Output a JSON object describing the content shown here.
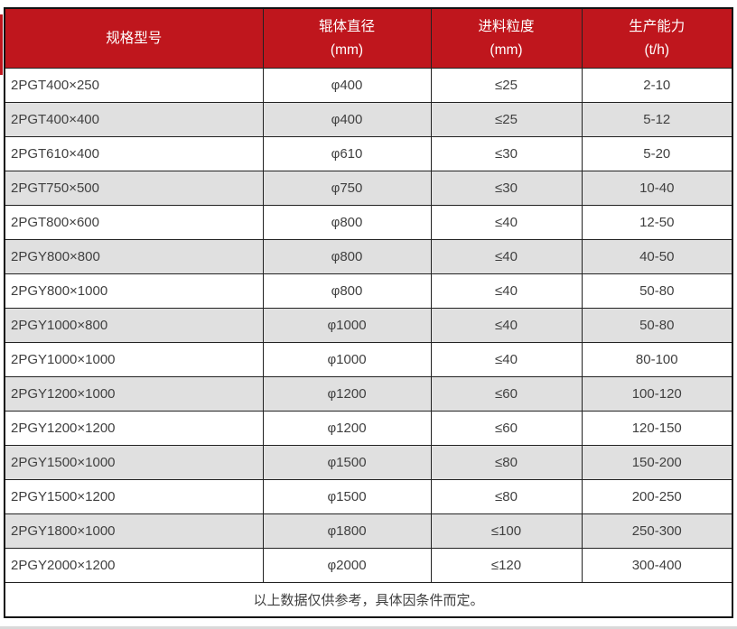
{
  "colors": {
    "header_bg": "#bf161d",
    "header_text": "#ffffff",
    "row_bg": "#ffffff",
    "row_alt_bg": "#e0e0e0",
    "body_text": "#404040",
    "border_outer": "#111111",
    "border_inner": "#222222",
    "edge_strip": "#d9d9d9"
  },
  "table": {
    "columns": [
      {
        "title": "规格型号",
        "unit": ""
      },
      {
        "title": "辊体直径",
        "unit": "(mm)"
      },
      {
        "title": "进料粒度",
        "unit": "(mm)"
      },
      {
        "title": "生产能力",
        "unit": "(t/h)"
      }
    ],
    "rows": [
      [
        "2PGT400×250",
        "φ400",
        "≤25",
        "2-10"
      ],
      [
        "2PGT400×400",
        "φ400",
        "≤25",
        "5-12"
      ],
      [
        "2PGT610×400",
        "φ610",
        "≤30",
        "5-20"
      ],
      [
        "2PGT750×500",
        "φ750",
        "≤30",
        "10-40"
      ],
      [
        "2PGT800×600",
        "φ800",
        "≤40",
        "12-50"
      ],
      [
        "2PGY800×800",
        "φ800",
        "≤40",
        "40-50"
      ],
      [
        "2PGY800×1000",
        "φ800",
        "≤40",
        "50-80"
      ],
      [
        "2PGY1000×800",
        "φ1000",
        "≤40",
        "50-80"
      ],
      [
        "2PGY1000×1000",
        "φ1000",
        "≤40",
        "80-100"
      ],
      [
        "2PGY1200×1000",
        "φ1200",
        "≤60",
        "100-120"
      ],
      [
        "2PGY1200×1200",
        "φ1200",
        "≤60",
        "120-150"
      ],
      [
        "2PGY1500×1000",
        "φ1500",
        "≤80",
        "150-200"
      ],
      [
        "2PGY1500×1200",
        "φ1500",
        "≤80",
        "200-250"
      ],
      [
        "2PGY1800×1000",
        "φ1800",
        "≤100",
        "250-300"
      ],
      [
        "2PGY2000×1200",
        "φ2000",
        "≤120",
        "300-400"
      ]
    ],
    "footer_note": "以上数据仅供参考，具体因条件而定。"
  }
}
